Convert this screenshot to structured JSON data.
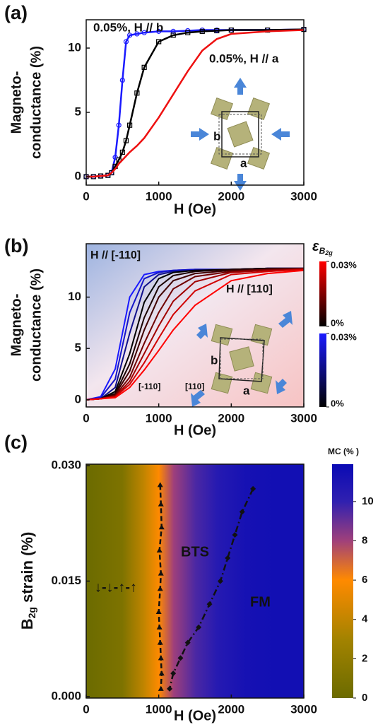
{
  "chart_data": [
    {
      "type": "line",
      "panel_label": "(a)",
      "xlabel": "H (Oe)",
      "ylabel_lines": [
        "Magneto-",
        "conductance (%)"
      ],
      "xlim": [
        0,
        3000
      ],
      "xticks": [
        0,
        1000,
        2000,
        3000
      ],
      "ylim": [
        -0.66,
        12.2
      ],
      "yticks": [
        0,
        5,
        10
      ],
      "x": [
        0,
        100,
        200,
        300,
        350,
        400,
        450,
        500,
        550,
        600,
        700,
        800,
        1000,
        1200,
        1400,
        1600,
        1800,
        2000,
        2500,
        3000
      ],
      "series": [
        {
          "name": "0.05%, H // b",
          "color": "#1a1aff",
          "marker": "circle",
          "values": [
            0,
            0,
            0.05,
            0.1,
            0.3,
            1.5,
            4,
            7.5,
            10.5,
            11,
            11.1,
            11.2,
            11.3,
            11.3,
            11.35,
            11.4,
            11.4,
            11.4,
            11.4,
            11.45
          ]
        },
        {
          "color": "#000000",
          "marker": "square",
          "values": [
            0,
            0,
            0.05,
            0.1,
            0.3,
            0.8,
            1.3,
            1.9,
            2.8,
            4,
            6.5,
            8.5,
            10.5,
            11,
            11.2,
            11.3,
            11.35,
            11.4,
            11.4,
            11.45
          ]
        },
        {
          "name": "0.05%, H // a",
          "color": "#ee1111",
          "values": [
            0,
            0,
            0.05,
            0.1,
            0.3,
            0.6,
            1,
            1.3,
            1.6,
            1.9,
            2.4,
            3,
            4.6,
            6.4,
            8.2,
            9.8,
            10.7,
            11.1,
            11.3,
            11.4
          ]
        }
      ],
      "inset_labels": [
        "b",
        "a"
      ]
    },
    {
      "type": "line",
      "panel_label": "(b)",
      "xlabel": "H (Oe)",
      "ylabel_lines": [
        "Magneto-",
        "conductance (%)"
      ],
      "xlim": [
        0,
        3000
      ],
      "xticks": [
        0,
        1000,
        2000,
        3000
      ],
      "ylim": [
        -0.7,
        15.2
      ],
      "yticks": [
        0,
        5,
        10
      ],
      "x": [
        0,
        200,
        400,
        600,
        800,
        1000,
        1200,
        1500,
        2000,
        2500,
        3000
      ],
      "series": [
        {
          "color": "#1a1aff",
          "values": [
            0,
            0.3,
            3,
            10,
            12.2,
            12.5,
            12.6,
            12.7,
            12.7,
            12.8,
            12.8
          ]
        },
        {
          "color": "#1515c8",
          "values": [
            0,
            0.2,
            2,
            8.5,
            11.8,
            12.4,
            12.6,
            12.7,
            12.7,
            12.8,
            12.8
          ]
        },
        {
          "color": "#10108a",
          "values": [
            0,
            0.1,
            1.2,
            6.5,
            11,
            12.2,
            12.5,
            12.6,
            12.7,
            12.8,
            12.8
          ]
        },
        {
          "color": "#000000",
          "values": [
            0,
            0.1,
            0.8,
            4.5,
            9.5,
            11.8,
            12.4,
            12.6,
            12.7,
            12.8,
            12.8
          ]
        },
        {
          "color": "#1a0000",
          "values": [
            0,
            0.1,
            0.6,
            3.5,
            8,
            11,
            12.1,
            12.5,
            12.7,
            12.8,
            12.8
          ]
        },
        {
          "color": "#400000",
          "values": [
            0,
            0.1,
            0.5,
            2.8,
            6.8,
            10,
            11.6,
            12.3,
            12.6,
            12.7,
            12.8
          ]
        },
        {
          "color": "#700000",
          "values": [
            0,
            0.1,
            0.4,
            2.2,
            5.5,
            8.5,
            10.8,
            12,
            12.5,
            12.7,
            12.8
          ]
        },
        {
          "color": "#a00000",
          "values": [
            0,
            0.1,
            0.3,
            1.8,
            4.5,
            7.2,
            9.6,
            11.5,
            12.4,
            12.6,
            12.7
          ]
        },
        {
          "color": "#d00000",
          "values": [
            0,
            0.1,
            0.3,
            1.5,
            3.6,
            6,
            8.3,
            10.6,
            12.2,
            12.5,
            12.7
          ]
        },
        {
          "color": "#ff0000",
          "values": [
            0,
            0.1,
            0.2,
            1.2,
            2.9,
            4.8,
            6.8,
            9.2,
            11.6,
            12.3,
            12.6
          ]
        }
      ],
      "annotations": [
        "H // [-110]",
        "H // [110]",
        "[-110]",
        "[110]"
      ],
      "inset_labels": [
        "b",
        "a"
      ],
      "colorbar_title": {
        "symbol": "ε",
        "sub": "B",
        "subsub": "2g"
      },
      "colorbars": [
        {
          "colors": [
            "#000000",
            "#ff0000"
          ],
          "clim": [
            0,
            0.03
          ],
          "ticks": [
            {
              "value": 0.03,
              "label": "0.03%"
            },
            {
              "value": 0,
              "label": "0%"
            }
          ]
        },
        {
          "colors": [
            "#000000",
            "#1a1aff"
          ],
          "clim": [
            0,
            0.03
          ],
          "ticks": [
            {
              "value": 0.03,
              "label": "0.03%"
            },
            {
              "value": 0,
              "label": "0%"
            }
          ]
        }
      ]
    },
    {
      "type": "heatmap",
      "panel_label": "(c)",
      "xlabel": "H (Oe)",
      "ylabel": {
        "main": "B",
        "sub": "2g",
        "rest": " strain (%)"
      },
      "xlim": [
        0,
        3000
      ],
      "xticks": [
        0,
        1000,
        2000,
        3000
      ],
      "ylim": [
        -0.0002,
        0.0302
      ],
      "yticks": [
        {
          "value": 0,
          "label": "0.000"
        },
        {
          "value": 0.015,
          "label": "0.015"
        },
        {
          "value": 0.03,
          "label": "0.030"
        }
      ],
      "mc_profile": {
        "x": [
          0,
          500,
          800,
          1000,
          1200,
          1500,
          1800,
          2200,
          2600,
          3000
        ],
        "values": [
          0,
          1,
          4,
          6,
          8,
          9.5,
          10.5,
          11.3,
          11.5,
          11.5
        ]
      },
      "boundaries": [
        {
          "marker": "triangle",
          "x": [
            1020,
            1030,
            1040,
            1010,
            1030,
            1020,
            1000,
            1010,
            1020,
            1030,
            1040,
            1030
          ],
          "y": [
            0.0275,
            0.025,
            0.022,
            0.019,
            0.016,
            0.014,
            0.011,
            0.009,
            0.007,
            0.005,
            0.003,
            0.001
          ]
        },
        {
          "marker": "diamond",
          "x": [
            2300,
            2150,
            2050,
            1950,
            1850,
            1700,
            1550,
            1400,
            1300,
            1200,
            1150
          ],
          "y": [
            0.027,
            0.024,
            0.021,
            0.018,
            0.015,
            0.012,
            0.009,
            0.007,
            0.005,
            0.003,
            0.001
          ]
        }
      ],
      "phase_labels": [
        "↓-↓-↑-↑",
        "BTS",
        "FM"
      ],
      "colorbar_title": "MC (% )",
      "clim": [
        0,
        11.9
      ],
      "cticks": [
        0,
        2,
        4,
        6,
        8,
        10
      ],
      "colormap": [
        {
          "value": 0,
          "color": "#6b6b00"
        },
        {
          "value": 3,
          "color": "#a38300"
        },
        {
          "value": 6,
          "color": "#ff8a00"
        },
        {
          "value": 8,
          "color": "#a0407a"
        },
        {
          "value": 10,
          "color": "#3020b0"
        },
        {
          "value": 11.9,
          "color": "#0a0ab4"
        }
      ]
    }
  ]
}
